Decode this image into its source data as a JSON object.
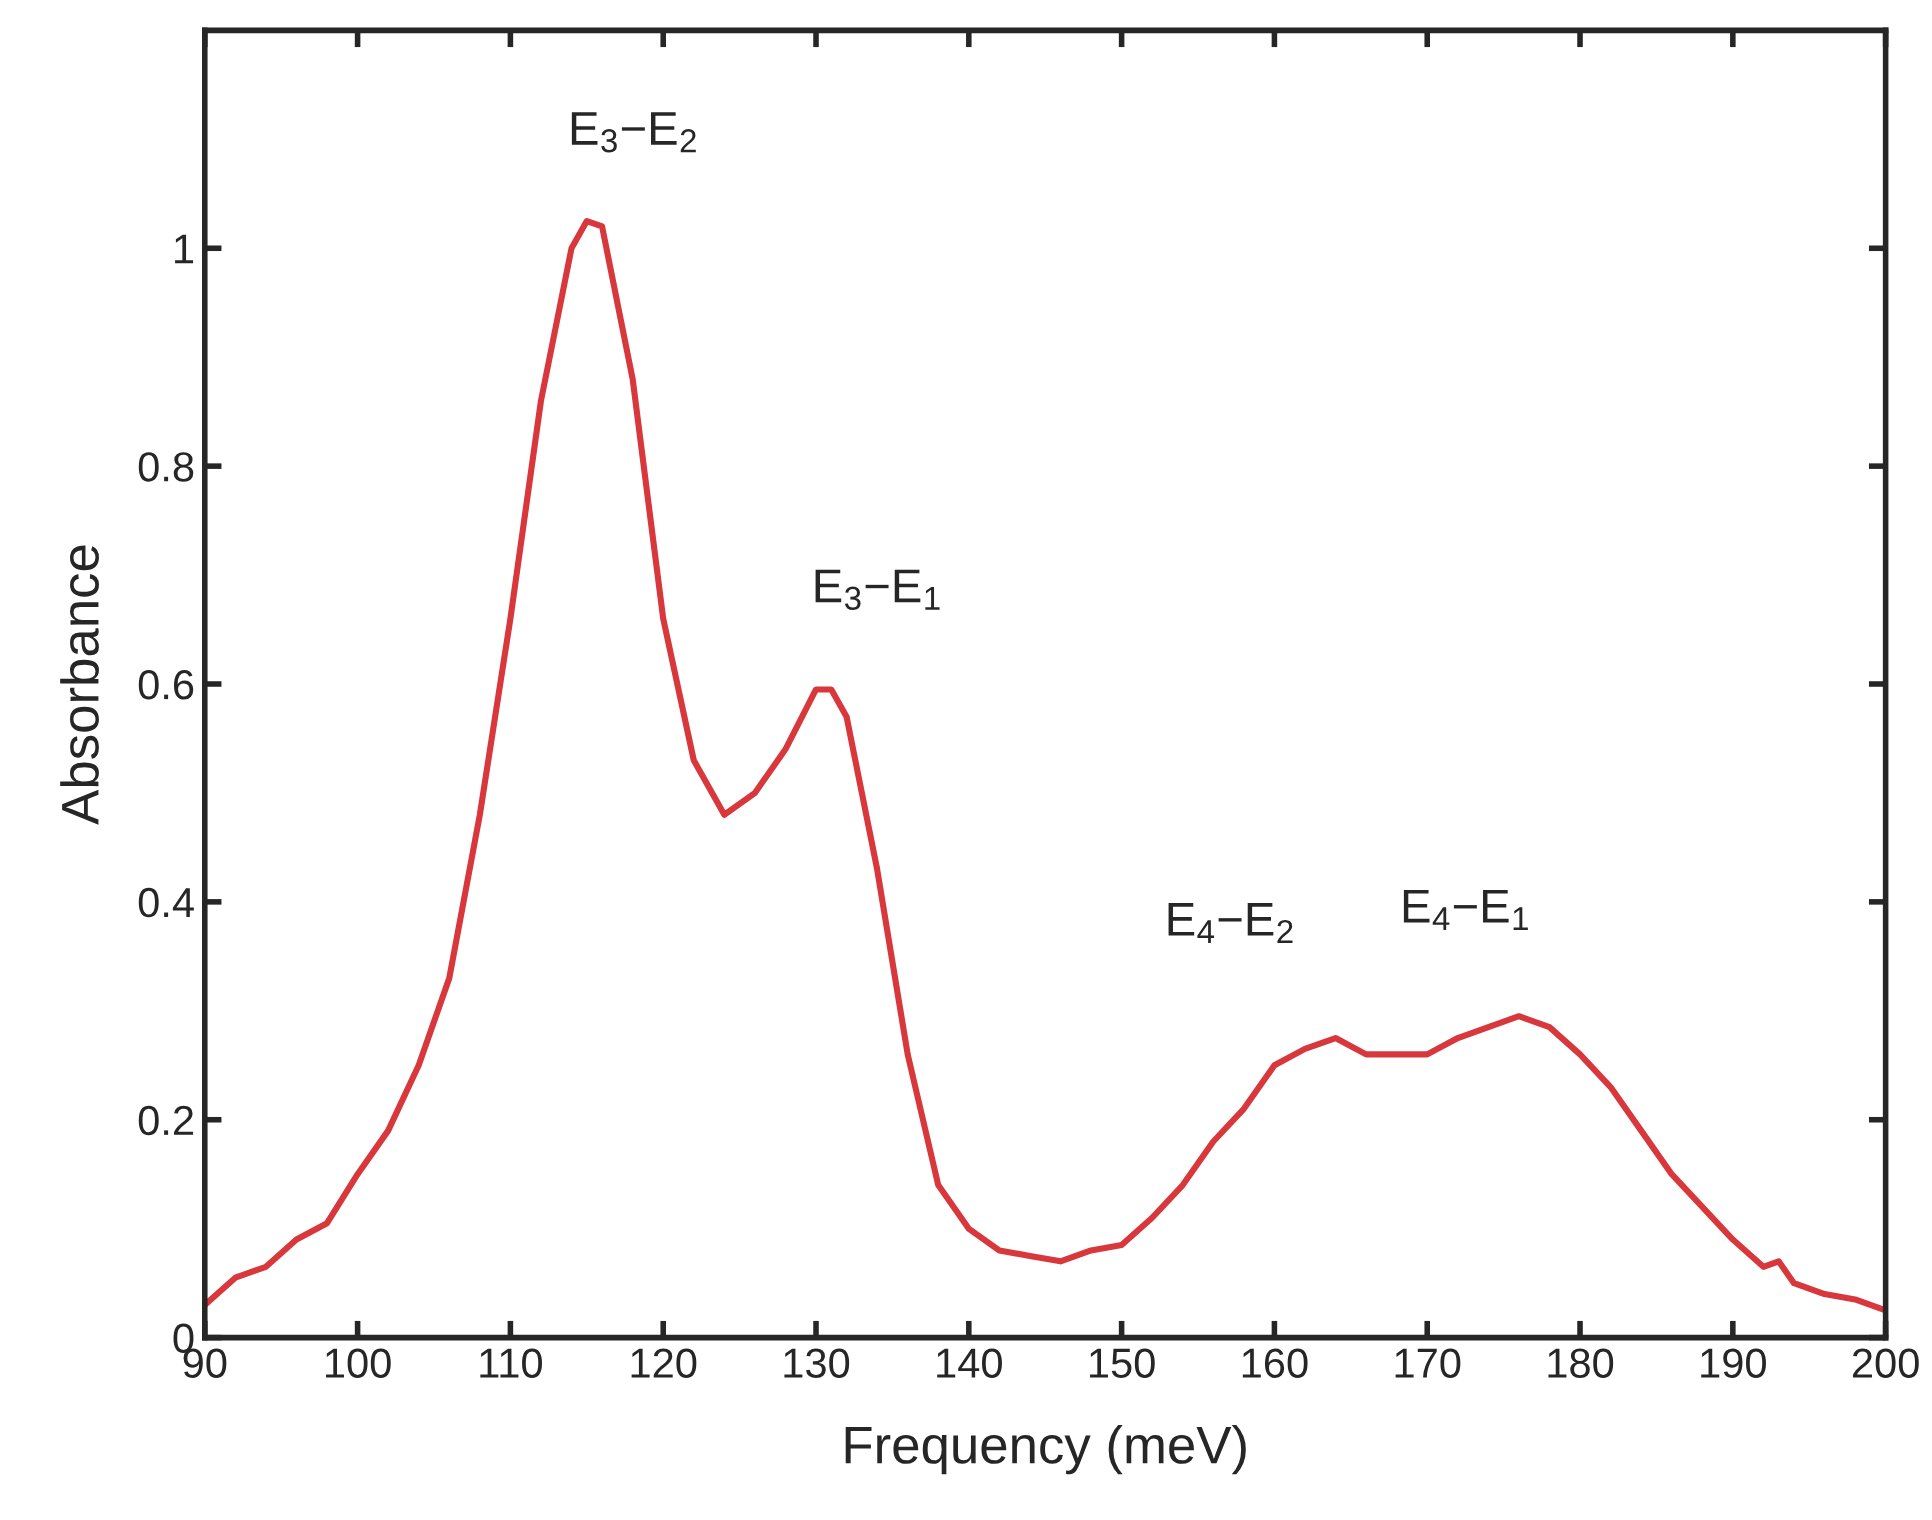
{
  "chart_data": {
    "type": "line",
    "xlabel": "Frequency (meV)",
    "ylabel": "Absorbance",
    "x": [
      90,
      92,
      94,
      96,
      98,
      100,
      102,
      104,
      106,
      108,
      110,
      112,
      114,
      115,
      116,
      118,
      120,
      122,
      124,
      126,
      128,
      130,
      131,
      132,
      134,
      136,
      138,
      140,
      142,
      144,
      146,
      148,
      150,
      152,
      154,
      156,
      158,
      160,
      162,
      164,
      166,
      168,
      170,
      172,
      174,
      176,
      178,
      180,
      182,
      184,
      186,
      188,
      190,
      192,
      193,
      194,
      196,
      198,
      200
    ],
    "series": [
      {
        "color": "#d8383c",
        "values": [
          0.03,
          0.055,
          0.065,
          0.09,
          0.105,
          0.15,
          0.19,
          0.25,
          0.33,
          0.48,
          0.66,
          0.86,
          1.0,
          1.025,
          1.02,
          0.88,
          0.66,
          0.53,
          0.48,
          0.5,
          0.54,
          0.595,
          0.595,
          0.57,
          0.43,
          0.26,
          0.14,
          0.1,
          0.08,
          0.075,
          0.07,
          0.08,
          0.085,
          0.11,
          0.14,
          0.18,
          0.21,
          0.25,
          0.265,
          0.275,
          0.26,
          0.26,
          0.26,
          0.275,
          0.285,
          0.295,
          0.285,
          0.26,
          0.23,
          0.19,
          0.15,
          0.12,
          0.09,
          0.065,
          0.07,
          0.05,
          0.04,
          0.035,
          0.025
        ]
      }
    ],
    "annotations": [
      "E$_{3}$−E$_{2}$",
      "E$_{3}$−E$_{1}$",
      "E$_{4}$−E$_{2}$",
      "E$_{4}$−E$_{1}$"
    ],
    "xlim": [
      90,
      200
    ],
    "xticks": [
      90,
      100,
      110,
      120,
      130,
      140,
      150,
      160,
      170,
      180,
      190,
      200
    ],
    "ylim": [
      0,
      1.2
    ],
    "yticks": [
      0,
      0.2,
      0.4,
      0.6,
      0.8,
      1
    ],
    "grid": false,
    "legend": false,
    "line_style": "solid",
    "marker": "none"
  }
}
